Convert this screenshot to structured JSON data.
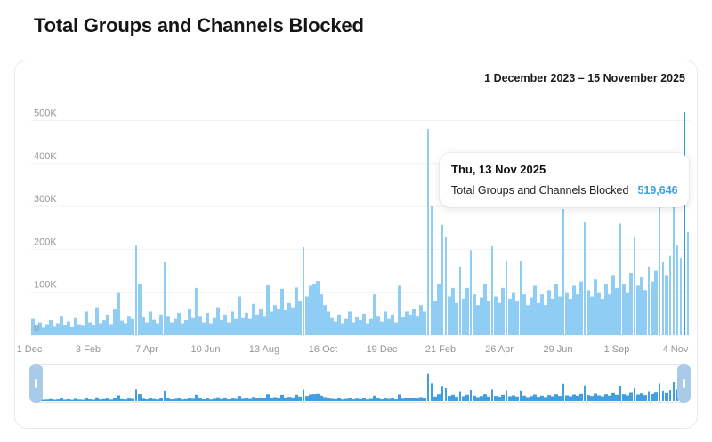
{
  "page_title": "Total Groups and Channels Blocked",
  "header": {
    "date_range": "1 December 2023 – 15 November 2025"
  },
  "tooltip": {
    "date": "Thu, 13 Nov 2025",
    "label": "Total Groups and Channels Blocked",
    "value": "519,646",
    "value_color": "#3ea0e2"
  },
  "chart_data": {
    "type": "bar",
    "title": "Total Groups and Channels Blocked",
    "start_date": "1 December 2023",
    "end_date": "15 November 2025",
    "x_tick_labels": [
      "1 Dec",
      "3 Feb",
      "7 Apr",
      "10 Jun",
      "13 Aug",
      "16 Oct",
      "19 Dec",
      "21 Feb",
      "26 Apr",
      "29 Jun",
      "1 Sep",
      "4 Nov"
    ],
    "y_tick_labels": [
      "0",
      "100K",
      "200K",
      "300K",
      "400K",
      "500K"
    ],
    "ylim": [
      0,
      560000
    ],
    "grid": "horizontal",
    "note": "daily blocked counts estimated from pixels, sampled every ~4 days",
    "values": [
      38000,
      22000,
      30000,
      18000,
      26000,
      35000,
      20000,
      28000,
      45000,
      24000,
      32000,
      19000,
      40000,
      26000,
      22000,
      55000,
      30000,
      24000,
      65000,
      28000,
      35000,
      48000,
      26000,
      60000,
      100000,
      34000,
      28000,
      45000,
      38000,
      210000,
      120000,
      42000,
      30000,
      55000,
      36000,
      28000,
      48000,
      170000,
      45000,
      30000,
      38000,
      52000,
      28000,
      35000,
      60000,
      40000,
      110000,
      45000,
      30000,
      52000,
      28000,
      40000,
      65000,
      35000,
      48000,
      30000,
      55000,
      38000,
      90000,
      40000,
      52000,
      38000,
      73000,
      48000,
      60000,
      45000,
      118000,
      55000,
      70000,
      62000,
      108000,
      58000,
      75000,
      65000,
      111000,
      80000,
      205000,
      90000,
      115000,
      120000,
      126000,
      95000,
      70000,
      55000,
      40000,
      32000,
      48000,
      28000,
      38000,
      55000,
      30000,
      42000,
      35000,
      50000,
      28000,
      38000,
      95000,
      45000,
      32000,
      55000,
      38000,
      48000,
      30000,
      115000,
      42000,
      55000,
      48000,
      60000,
      45000,
      70000,
      55000,
      480000,
      300000,
      80000,
      120000,
      257000,
      230000,
      90000,
      110000,
      75000,
      160000,
      85000,
      110000,
      198000,
      95000,
      70000,
      88000,
      120000,
      80000,
      207000,
      90000,
      75000,
      110000,
      174000,
      85000,
      100000,
      80000,
      172000,
      95000,
      70000,
      88000,
      115000,
      75000,
      95000,
      70000,
      105000,
      85000,
      120000,
      90000,
      294000,
      100000,
      85000,
      115000,
      95000,
      125000,
      263000,
      105000,
      90000,
      130000,
      100000,
      85000,
      120000,
      95000,
      140000,
      110000,
      260000,
      120000,
      100000,
      145000,
      230000,
      115000,
      135000,
      105000,
      160000,
      125000,
      150000,
      300000,
      170000,
      140000,
      185000,
      320000,
      210000,
      180000,
      519646,
      240000
    ],
    "highlight": {
      "index": 183,
      "date": "Thu, 13 Nov 2025",
      "value": 519646
    },
    "colors": {
      "bar": "#8fcdf5",
      "highlight_bar": "#359bdc",
      "minimap_bar": "#419fe0",
      "gridline": "#f2f2f5",
      "axis_text": "#96969b"
    }
  },
  "minimap": {
    "left_handle": "drag-handle",
    "right_handle": "drag-handle"
  }
}
